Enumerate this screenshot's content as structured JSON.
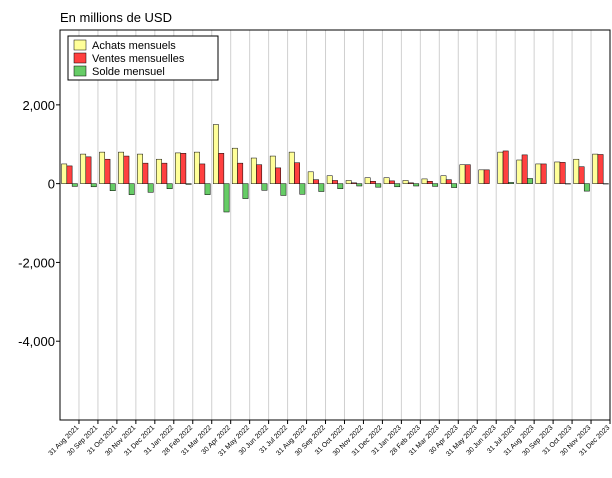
{
  "chart_data": {
    "type": "bar",
    "title": "En millions de USD",
    "categories": [
      "31 Aug 2021",
      "30 Sep 2021",
      "31 Oct 2021",
      "30 Nov 2021",
      "31 Dec 2021",
      "31 Jan 2022",
      "28 Feb 2022",
      "31 Mar 2022",
      "30 Apr 2022",
      "31 May 2022",
      "30 Jun 2022",
      "31 Jul 2022",
      "31 Aug 2022",
      "30 Sep 2022",
      "31 Oct 2022",
      "30 Nov 2022",
      "31 Dec 2022",
      "31 Jan 2023",
      "28 Feb 2023",
      "31 Mar 2023",
      "30 Apr 2023",
      "31 May 2023",
      "30 Jun 2023",
      "31 Jul 2023",
      "31 Aug 2023",
      "30 Sep 2023",
      "31 Oct 2023",
      "30 Nov 2023",
      "31 Dec 2023"
    ],
    "series": [
      {
        "name": "Achats mensuels",
        "color": "#ffff99",
        "values": [
          500,
          750,
          800,
          800,
          750,
          620,
          780,
          800,
          1500,
          900,
          650,
          700,
          800,
          300,
          200,
          80,
          150,
          150,
          80,
          120,
          200,
          480,
          350,
          800,
          600,
          500,
          550,
          620,
          750
        ]
      },
      {
        "name": "Ventes mensuelles",
        "color": "#ff4040",
        "values": [
          450,
          680,
          620,
          700,
          520,
          520,
          770,
          500,
          770,
          520,
          480,
          400,
          530,
          100,
          80,
          20,
          60,
          70,
          20,
          60,
          100,
          480,
          350,
          830,
          730,
          500,
          540,
          430,
          740
        ]
      },
      {
        "name": "Solde mensuel",
        "color": "#66cc66",
        "values": [
          -70,
          -80,
          -180,
          -280,
          -220,
          -130,
          -20,
          -280,
          -720,
          -380,
          -170,
          -300,
          -270,
          -200,
          -130,
          -60,
          -90,
          -80,
          -60,
          -70,
          -100,
          0,
          0,
          30,
          130,
          0,
          -10,
          -190,
          -10
        ]
      }
    ],
    "ylim": [
      -6000,
      3900
    ],
    "yticks": [
      {
        "value": -4000,
        "label": "-4,000"
      },
      {
        "value": -2000,
        "label": "-2,000"
      },
      0,
      {
        "value": 2000,
        "label": "2,000"
      }
    ],
    "grid": true,
    "legend": "top-left"
  }
}
